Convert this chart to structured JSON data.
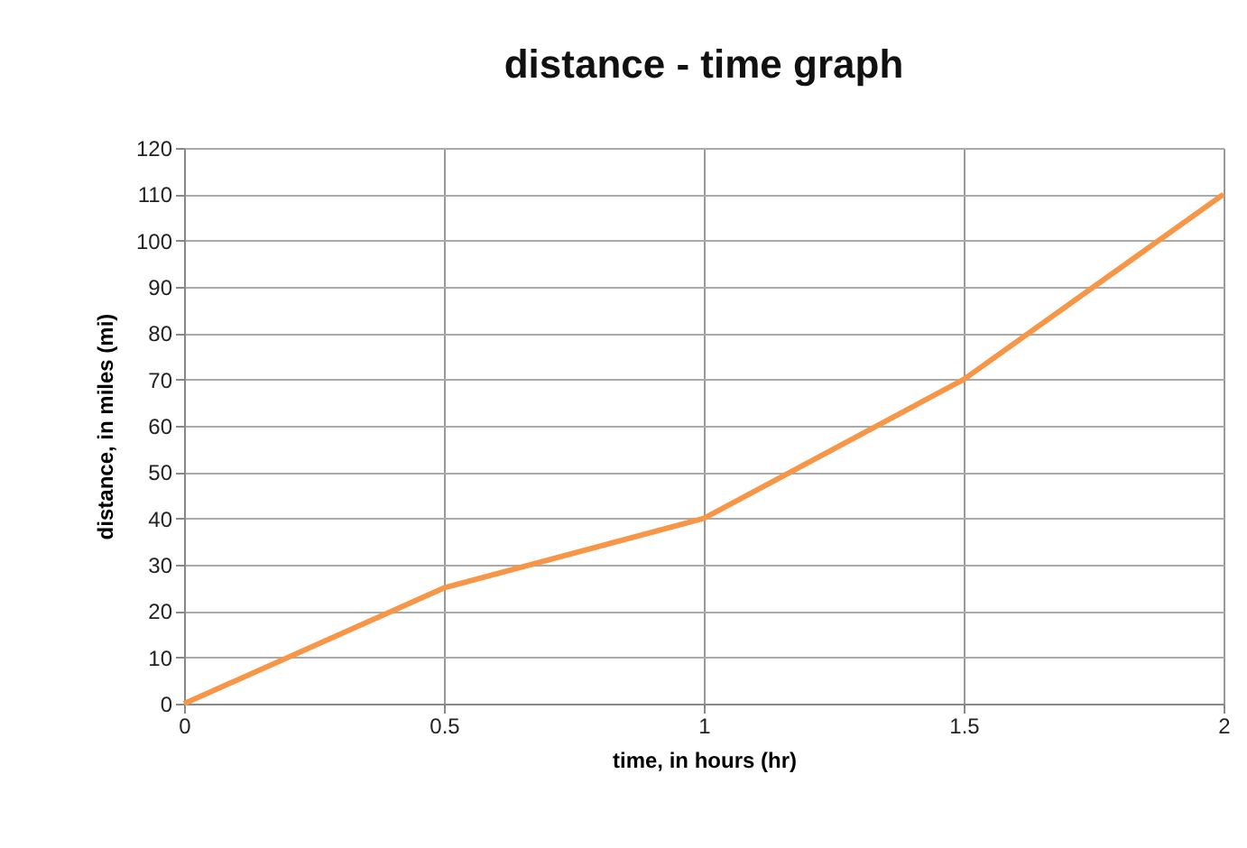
{
  "chart_data": {
    "type": "line",
    "title": "distance - time graph",
    "xlabel": "time, in hours (hr)",
    "ylabel": "distance, in miles (mi)",
    "x": [
      0,
      0.5,
      1,
      1.5,
      2
    ],
    "series": [
      {
        "color": "#f79646",
        "values": [
          0,
          25,
          40,
          70,
          110
        ]
      }
    ],
    "xlim": [
      0,
      2
    ],
    "xticks": [
      0,
      0.5,
      1,
      1.5,
      2
    ],
    "ylim": [
      0,
      120
    ],
    "yticks": [
      0,
      10,
      20,
      30,
      40,
      50,
      60,
      70,
      80,
      90,
      100,
      110,
      120
    ],
    "grid": true,
    "marker": "none",
    "line_style": "solid"
  }
}
